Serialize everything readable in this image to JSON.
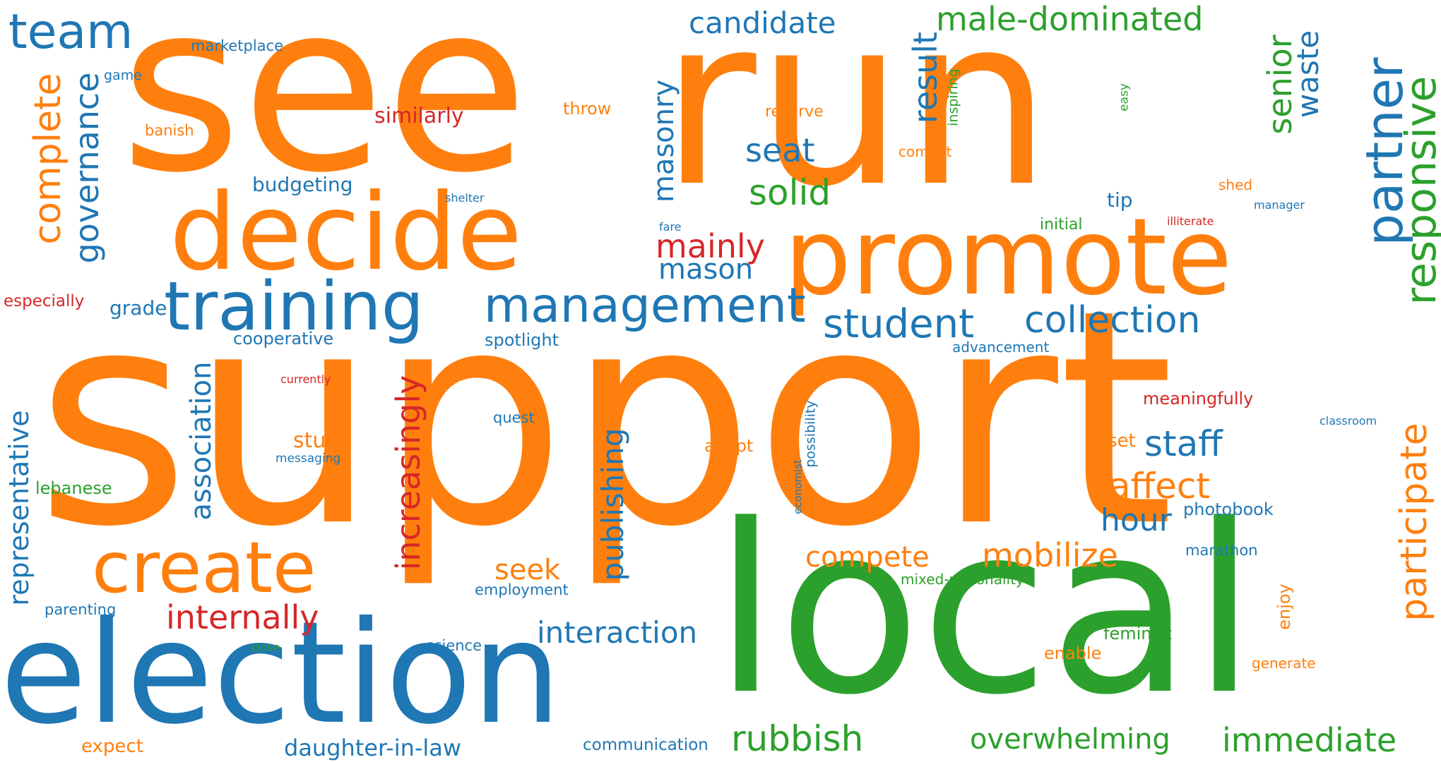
{
  "words": {
    "see": "see",
    "run": "run",
    "support": "support",
    "local": "local",
    "election": "election",
    "decide": "decide",
    "promote": "promote",
    "training": "training",
    "management": "management",
    "create": "create",
    "team": "team",
    "partner": "partner",
    "responsive": "responsive",
    "participate": "participate",
    "student": "student",
    "collection": "collection",
    "complete": "complete",
    "governance": "governance",
    "male_dominated": "male-dominated",
    "candidate": "candidate",
    "result": "result",
    "senior": "senior",
    "waste": "waste",
    "seat": "seat",
    "solid": "solid",
    "mainly": "mainly",
    "mason": "mason",
    "masonry": "masonry",
    "similarly": "similarly",
    "throw": "throw",
    "reserve": "reserve",
    "combat": "combat",
    "inspiring": "inspiring",
    "easy": "easy",
    "marketplace": "marketplace",
    "game": "game",
    "banish": "banish",
    "budgeting": "budgeting",
    "shelter": "shelter",
    "fare": "fare",
    "tip": "tip",
    "initial": "initial",
    "illiterate": "illiterate",
    "shed": "shed",
    "manager": "manager",
    "especially": "especially",
    "grade": "grade",
    "cooperative": "cooperative",
    "spotlight": "spotlight",
    "advancement": "advancement",
    "currently": "currently",
    "meaningfully": "meaningfully",
    "quest": "quest",
    "classroom": "classroom",
    "representative": "representative",
    "association": "association",
    "increasingly": "increasingly",
    "publishing": "publishing",
    "study": "study",
    "messaging": "messaging",
    "adopt": "adopt",
    "set": "set",
    "staff": "staff",
    "economist": "economist",
    "possibility": "possibility",
    "lebanese": "lebanese",
    "affect": "affect",
    "photobook": "photobook",
    "hour": "hour",
    "seek": "seek",
    "compete": "compete",
    "mobilize": "mobilize",
    "marathon": "marathon",
    "internally": "internally",
    "employment": "employment",
    "mixed_nationality": "mixed-nationality",
    "enjoy": "enjoy",
    "parenting": "parenting",
    "interaction": "interaction",
    "feminist": "feminist",
    "close": "close",
    "science": "science",
    "enable": "enable",
    "generate": "generate",
    "rubbish": "rubbish",
    "overwhelming": "overwhelming",
    "immediate": "immediate",
    "expect": "expect",
    "daughter_in_law": "daughter-in-law",
    "communication": "communication"
  },
  "palette": {
    "orange": "#ff7f0e",
    "blue": "#1f77b4",
    "green": "#2ca02c",
    "red": "#d62728"
  }
}
